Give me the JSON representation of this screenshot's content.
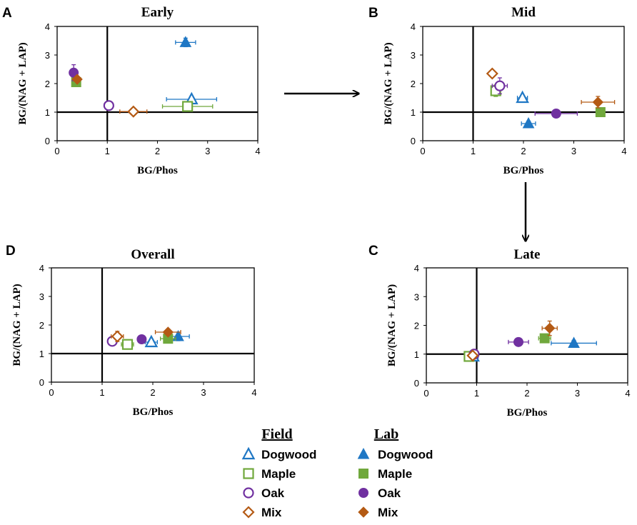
{
  "colors": {
    "dogwood": "#1f77c4",
    "maple": "#70a83c",
    "oak": "#7030a0",
    "mix": "#b45a14"
  },
  "chart_data": [
    {
      "type": "scatter",
      "letter": "A",
      "title": "Early",
      "xlabel": "BG/Phos",
      "ylabel": "BG/(NAG + LAP)",
      "xlim": [
        0,
        4
      ],
      "ylim": [
        0,
        4
      ],
      "xticks": [
        "0",
        "1",
        "2",
        "3",
        "4"
      ],
      "yticks": [
        "0",
        "1",
        "2",
        "3",
        "4"
      ],
      "reference_lines": {
        "x": 1,
        "y": 1
      },
      "points": [
        {
          "species": "Dogwood",
          "group": "Field",
          "x": 2.68,
          "y": 1.45,
          "xerr": 0.5,
          "yerr": 0.1
        },
        {
          "species": "Dogwood",
          "group": "Lab",
          "x": 2.56,
          "y": 3.44,
          "xerr": 0.2,
          "yerr": 0.15
        },
        {
          "species": "Maple",
          "group": "Field",
          "x": 2.6,
          "y": 1.2,
          "xerr": 0.5,
          "yerr": 0.1
        },
        {
          "species": "Maple",
          "group": "Lab",
          "x": 0.38,
          "y": 2.05,
          "xerr": 0.04,
          "yerr": 0.12
        },
        {
          "species": "Oak",
          "group": "Field",
          "x": 1.03,
          "y": 1.23,
          "xerr": 0.04,
          "yerr": 0.05
        },
        {
          "species": "Oak",
          "group": "Lab",
          "x": 0.33,
          "y": 2.38,
          "xerr": 0.04,
          "yerr": 0.28
        },
        {
          "species": "Mix",
          "group": "Field",
          "x": 1.52,
          "y": 1.02,
          "xerr": 0.27,
          "yerr": 0.04
        },
        {
          "species": "Mix",
          "group": "Lab",
          "x": 0.4,
          "y": 2.15,
          "xerr": 0.04,
          "yerr": 0.1
        }
      ]
    },
    {
      "type": "scatter",
      "letter": "B",
      "title": "Mid",
      "xlabel": "BG/Phos",
      "ylabel": "BG/(NAG + LAP)",
      "xlim": [
        0,
        4
      ],
      "ylim": [
        0,
        4
      ],
      "xticks": [
        "0",
        "1",
        "2",
        "3",
        "4"
      ],
      "yticks": [
        "0",
        "1",
        "2",
        "3",
        "4"
      ],
      "reference_lines": {
        "x": 1,
        "y": 1
      },
      "points": [
        {
          "species": "Dogwood",
          "group": "Field",
          "x": 1.98,
          "y": 1.5,
          "xerr": 0.1,
          "yerr": 0.08
        },
        {
          "species": "Dogwood",
          "group": "Lab",
          "x": 2.1,
          "y": 0.6,
          "xerr": 0.14,
          "yerr": 0.08
        },
        {
          "species": "Maple",
          "group": "Field",
          "x": 1.45,
          "y": 1.75,
          "xerr": 0.05,
          "yerr": 0.2
        },
        {
          "species": "Maple",
          "group": "Lab",
          "x": 3.53,
          "y": 1.0,
          "xerr": 0.04,
          "yerr": 0.05
        },
        {
          "species": "Oak",
          "group": "Field",
          "x": 1.53,
          "y": 1.92,
          "xerr": 0.15,
          "yerr": 0.28
        },
        {
          "species": "Oak",
          "group": "Lab",
          "x": 2.65,
          "y": 0.95,
          "xerr": 0.42,
          "yerr": 0.05
        },
        {
          "species": "Mix",
          "group": "Field",
          "x": 1.38,
          "y": 2.35,
          "xerr": 0.06,
          "yerr": 0.1
        },
        {
          "species": "Mix",
          "group": "Lab",
          "x": 3.48,
          "y": 1.35,
          "xerr": 0.33,
          "yerr": 0.2
        }
      ]
    },
    {
      "type": "scatter",
      "letter": "C",
      "title": "Late",
      "xlabel": "BG/Phos",
      "ylabel": "BG/(NAG + LAP)",
      "xlim": [
        0,
        4
      ],
      "ylim": [
        0,
        4
      ],
      "xticks": [
        "0",
        "1",
        "2",
        "3",
        "4"
      ],
      "yticks": [
        "0",
        "1",
        "2",
        "3",
        "4"
      ],
      "reference_lines": {
        "x": 1,
        "y": 1
      },
      "points": [
        {
          "species": "Dogwood",
          "group": "Field",
          "x": 0.93,
          "y": 0.92,
          "xerr": 0.1,
          "yerr": 0.05
        },
        {
          "species": "Dogwood",
          "group": "Lab",
          "x": 2.93,
          "y": 1.38,
          "xerr": 0.45,
          "yerr": 0.1
        },
        {
          "species": "Maple",
          "group": "Field",
          "x": 0.85,
          "y": 0.92,
          "xerr": 0.08,
          "yerr": 0.05
        },
        {
          "species": "Maple",
          "group": "Lab",
          "x": 2.35,
          "y": 1.55,
          "xerr": 0.12,
          "yerr": 0.1
        },
        {
          "species": "Oak",
          "group": "Field",
          "x": 0.95,
          "y": 1.0,
          "xerr": 0.05,
          "yerr": 0.05
        },
        {
          "species": "Oak",
          "group": "Lab",
          "x": 1.83,
          "y": 1.42,
          "xerr": 0.2,
          "yerr": 0.06
        },
        {
          "species": "Mix",
          "group": "Field",
          "x": 0.92,
          "y": 0.95,
          "xerr": 0.05,
          "yerr": 0.05
        },
        {
          "species": "Mix",
          "group": "Lab",
          "x": 2.45,
          "y": 1.9,
          "xerr": 0.15,
          "yerr": 0.25
        }
      ]
    },
    {
      "type": "scatter",
      "letter": "D",
      "title": "Overall",
      "xlabel": "BG/Phos",
      "ylabel": "BG/(NAG + LAP)",
      "xlim": [
        0,
        4
      ],
      "ylim": [
        0,
        4
      ],
      "xticks": [
        "0",
        "1",
        "2",
        "3",
        "4"
      ],
      "yticks": [
        "0",
        "1",
        "2",
        "3",
        "4"
      ],
      "reference_lines": {
        "x": 1,
        "y": 1
      },
      "points": [
        {
          "species": "Dogwood",
          "group": "Field",
          "x": 1.97,
          "y": 1.4,
          "xerr": 0.12,
          "yerr": 0.08
        },
        {
          "species": "Dogwood",
          "group": "Lab",
          "x": 2.5,
          "y": 1.6,
          "xerr": 0.22,
          "yerr": 0.15
        },
        {
          "species": "Maple",
          "group": "Field",
          "x": 1.5,
          "y": 1.32,
          "xerr": 0.12,
          "yerr": 0.12
        },
        {
          "species": "Maple",
          "group": "Lab",
          "x": 2.3,
          "y": 1.52,
          "xerr": 0.15,
          "yerr": 0.1
        },
        {
          "species": "Oak",
          "group": "Field",
          "x": 1.2,
          "y": 1.43,
          "xerr": 0.08,
          "yerr": 0.1
        },
        {
          "species": "Oak",
          "group": "Lab",
          "x": 1.78,
          "y": 1.5,
          "xerr": 0.05,
          "yerr": 0.05
        },
        {
          "species": "Mix",
          "group": "Field",
          "x": 1.3,
          "y": 1.6,
          "xerr": 0.12,
          "yerr": 0.18
        },
        {
          "species": "Mix",
          "group": "Lab",
          "x": 2.3,
          "y": 1.75,
          "xerr": 0.25,
          "yerr": 0.1
        }
      ]
    }
  ],
  "legend": {
    "field_header": "Field",
    "lab_header": "Lab",
    "entries": [
      {
        "species": "Dogwood",
        "label": "Dogwood"
      },
      {
        "species": "Maple",
        "label": "Maple"
      },
      {
        "species": "Oak",
        "label": "Oak"
      },
      {
        "species": "Mix",
        "label": "Mix"
      }
    ]
  }
}
